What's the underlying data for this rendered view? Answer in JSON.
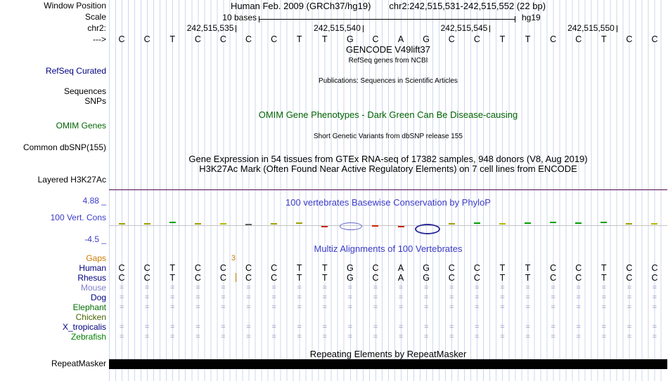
{
  "header": {
    "assembly": "Human Feb. 2009 (GRCh37/hg19)",
    "position": "chr2:242,515,531-242,515,552 (22 bp)",
    "scale_text": "10 bases",
    "assembly_tag": "hg19",
    "chrom_label": "chr2:",
    "strand_label": "--->",
    "ruler_ticks": [
      "242,515,535",
      "242,515,540",
      "242,515,545",
      "242,515,550"
    ]
  },
  "left_labels": {
    "window_position": "Window Position",
    "scale": "Scale",
    "refseq": "RefSeq Curated",
    "sequences": "Sequences",
    "snps": "SNPs",
    "omim": "OMIM Genes",
    "dbsnp": "Common dbSNP(155)",
    "h3k27ac": "Layered H3K27Ac",
    "cons_max": "4.88 _",
    "cons_name": "100 Vert. Cons",
    "cons_min": "-4.5 _",
    "repeatmasker": "RepeatMasker"
  },
  "sequence": [
    "C",
    "C",
    "T",
    "C",
    "C",
    "C",
    "C",
    "T",
    "T",
    "G",
    "C",
    "A",
    "G",
    "C",
    "C",
    "T",
    "T",
    "C",
    "C",
    "T",
    "C",
    "C"
  ],
  "track_titles": {
    "gencode": "GENCODE V49lift37",
    "gencode_sub": "RefSeq genes from NCBI",
    "publications": "Publications: Sequences in Scientific Articles",
    "omim_title": "OMIM Gene Phenotypes - Dark Green Can Be Disease-causing",
    "dbsnp_sub": "Short Genetic Variants from dbSNP release 155",
    "gtex": "Gene Expression in 54 tissues from GTEx RNA-seq of 17382 samples, 948 donors (V8, Aug 2019)",
    "h3k27ac_title": "H3K27Ac Mark (Often Found Near Active Regulatory Elements) on 7 cell lines from ENCODE",
    "phylop": "100 vertebrates Basewise Conservation by PhyloP",
    "multiz": "Multiz Alignments of 100 Vertebrates",
    "repeats": "Repeating Elements by RepeatMasker"
  },
  "alignment": {
    "gaps_label": "Gaps",
    "gap_count": "3",
    "rows": [
      {
        "name": "Human",
        "color": "#000080",
        "type": "bases"
      },
      {
        "name": "Rhesus",
        "color": "#000080",
        "type": "bases"
      },
      {
        "name": "Mouse",
        "color": "#8080cc",
        "type": "gaps"
      },
      {
        "name": "Dog",
        "color": "#000080",
        "type": "gaps"
      },
      {
        "name": "Elephant",
        "color": "#007000",
        "type": "gaps"
      },
      {
        "name": "Chicken",
        "color": "#456400",
        "type": "empty"
      },
      {
        "name": "X_tropicalis",
        "color": "#000080",
        "type": "gaps"
      },
      {
        "name": "Zebrafish",
        "color": "#008000",
        "type": "gaps"
      }
    ]
  },
  "chart_data": {
    "type": "wiggle",
    "title": "100 vertebrates Basewise Conservation by PhyloP",
    "ylim": [
      -4.5,
      4.88
    ],
    "region_start": 242515531,
    "region_end": 242515552,
    "scale": "10 bases",
    "marks": [
      {
        "col": 0,
        "kind": "dash",
        "color": "#a0a000",
        "dy": -2
      },
      {
        "col": 1,
        "kind": "dash",
        "color": "#a0a000",
        "dy": -2
      },
      {
        "col": 2,
        "kind": "dash",
        "color": "#00a000",
        "dy": -4
      },
      {
        "col": 3,
        "kind": "dash",
        "color": "#a0a000",
        "dy": -2
      },
      {
        "col": 4,
        "kind": "dash",
        "color": "#b8b800",
        "dy": -2
      },
      {
        "col": 5,
        "kind": "dash",
        "color": "#606060",
        "dy": -1
      },
      {
        "col": 6,
        "kind": "dash",
        "color": "#a0a000",
        "dy": -2
      },
      {
        "col": 7,
        "kind": "dash",
        "color": "#a0a000",
        "dy": -3
      },
      {
        "col": 8,
        "kind": "dash",
        "color": "#cc2200",
        "dy": 2
      },
      {
        "col": 9,
        "kind": "ellipse",
        "color": "#6666cc",
        "w": 30,
        "h": 9,
        "stroke": 1,
        "dy": 0
      },
      {
        "col": 10,
        "kind": "dash",
        "color": "#cc2200",
        "dy": 1
      },
      {
        "col": 11,
        "kind": "dash",
        "color": "#cc2200",
        "dy": 2
      },
      {
        "col": 12,
        "kind": "ellipse",
        "color": "#2a2a99",
        "w": 32,
        "h": 11,
        "stroke": 2,
        "dy": 3
      },
      {
        "col": 13,
        "kind": "dash",
        "color": "#a0a000",
        "dy": -2
      },
      {
        "col": 14,
        "kind": "dash",
        "color": "#00a000",
        "dy": -3
      },
      {
        "col": 15,
        "kind": "dash",
        "color": "#b8b800",
        "dy": -2
      },
      {
        "col": 16,
        "kind": "dash",
        "color": "#00a000",
        "dy": -3
      },
      {
        "col": 17,
        "kind": "dash",
        "color": "#00a000",
        "dy": -4
      },
      {
        "col": 18,
        "kind": "dash",
        "color": "#00a000",
        "dy": -3
      },
      {
        "col": 19,
        "kind": "dash",
        "color": "#00a000",
        "dy": -4
      },
      {
        "col": 20,
        "kind": "dash",
        "color": "#a0a000",
        "dy": -2
      },
      {
        "col": 21,
        "kind": "dash",
        "color": "#b8b800",
        "dy": -2
      }
    ]
  },
  "colors": {
    "grid_line": "#ccd7ee",
    "title_blue": "#3b3bc8",
    "omim_green": "#006400",
    "refseq_navy": "#000080",
    "gap_orange": "#cc7a00",
    "h3k27ac_line": "#4f074f",
    "repeat_bar": "#000000",
    "gap_glyph": "#9697c0"
  }
}
